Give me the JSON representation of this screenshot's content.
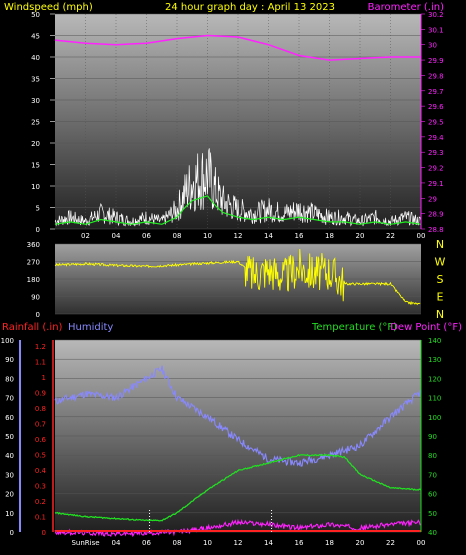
{
  "header": {
    "left_label": "Windspeed (mph)",
    "title": "24 hour graph day : April 13 2023",
    "right_label": "Barometer (.in)"
  },
  "bottom_header": {
    "rainfall_label": "Rainfall (.in)",
    "humidity_label": "Humidity",
    "temperature_label": "Temperature (°F)",
    "dewpoint_label": "Dew Point (°F)"
  },
  "colors": {
    "windspeed": "#ffffff",
    "wind_avg": "#22ee22",
    "barometer": "#ff22ff",
    "direction": "#ffff00",
    "rain": "#ff2222",
    "humidity": "#8888ff",
    "temperature": "#22dd22",
    "dewpoint": "#ff22ff",
    "header_text": "#ffff00"
  },
  "markers": {
    "sunrise": "SunRise",
    "sunset": ""
  },
  "chart_data": [
    {
      "type": "line",
      "name": "wind-barometer",
      "x_ticks": [
        "02",
        "04",
        "06",
        "08",
        "10",
        "12",
        "14",
        "16",
        "18",
        "20",
        "22",
        "00"
      ],
      "y_left_ticks": [
        "0",
        "5",
        "10",
        "15",
        "20",
        "25",
        "30",
        "35",
        "40",
        "45",
        "50"
      ],
      "y_right_ticks": [
        "28.8",
        "28.9",
        "29",
        "29.1",
        "29.2",
        "29.3",
        "29.4",
        "29.5",
        "29.6",
        "29.7",
        "29.8",
        "29.9",
        "30",
        "30.1",
        "30.2"
      ],
      "ylim_left": [
        0,
        50
      ],
      "ylim_right": [
        28.8,
        30.2
      ],
      "series": [
        {
          "name": "Windspeed (mph)",
          "axis": "left",
          "points": [
            [
              0,
              2
            ],
            [
              1,
              3
            ],
            [
              2,
              2
            ],
            [
              3,
              4
            ],
            [
              4,
              3
            ],
            [
              5,
              2
            ],
            [
              6,
              3
            ],
            [
              7,
              2
            ],
            [
              8,
              5
            ],
            [
              8.5,
              9
            ],
            [
              9,
              12
            ],
            [
              9.5,
              13
            ],
            [
              10,
              14
            ],
            [
              10.5,
              10
            ],
            [
              11,
              7
            ],
            [
              12,
              5
            ],
            [
              13,
              4
            ],
            [
              14,
              5
            ],
            [
              15,
              4
            ],
            [
              16,
              5
            ],
            [
              17,
              4
            ],
            [
              18,
              3
            ],
            [
              19,
              3
            ],
            [
              20,
              2
            ],
            [
              21,
              3
            ],
            [
              22,
              2
            ],
            [
              23,
              3
            ],
            [
              24,
              2
            ]
          ]
        },
        {
          "name": "Barometer (.in)",
          "axis": "right",
          "points": [
            [
              0,
              30.03
            ],
            [
              2,
              30.01
            ],
            [
              4,
              30.0
            ],
            [
              6,
              30.01
            ],
            [
              8,
              30.04
            ],
            [
              10,
              30.06
            ],
            [
              12,
              30.05
            ],
            [
              14,
              30.0
            ],
            [
              16,
              29.93
            ],
            [
              18,
              29.9
            ],
            [
              20,
              29.91
            ],
            [
              22,
              29.92
            ],
            [
              24,
              29.92
            ]
          ]
        }
      ]
    },
    {
      "type": "line",
      "name": "wind-direction",
      "y_ticks": [
        "0",
        "90",
        "180",
        "270",
        "360"
      ],
      "direction_labels": [
        "N",
        "W",
        "S",
        "E",
        "N"
      ],
      "ylim": [
        0,
        360
      ],
      "series": [
        {
          "name": "Direction",
          "points": [
            [
              0,
              252
            ],
            [
              2,
              258
            ],
            [
              4,
              250
            ],
            [
              6,
              245
            ],
            [
              8,
              252
            ],
            [
              10,
              262
            ],
            [
              12,
              270
            ],
            [
              13,
              200
            ],
            [
              14,
              230
            ],
            [
              15,
              190
            ],
            [
              16,
              240
            ],
            [
              17,
              210
            ],
            [
              18,
              220
            ],
            [
              19,
              155
            ],
            [
              20,
              155
            ],
            [
              22,
              155
            ],
            [
              23,
              60
            ],
            [
              24,
              50
            ]
          ]
        }
      ]
    },
    {
      "type": "line",
      "name": "temp-humidity",
      "x_ticks": [
        "SunRise",
        "04",
        "06",
        "08",
        "10",
        "12",
        "14",
        "16",
        "18",
        "20",
        "22",
        "00"
      ],
      "y_left_ticks": [
        "0",
        "10",
        "20",
        "30",
        "40",
        "50",
        "60",
        "70",
        "80",
        "90",
        "100"
      ],
      "y_rain_ticks": [
        "0",
        "0.1",
        "0.2",
        "0.3",
        "0.4",
        "0.5",
        "0.6",
        "0.7",
        "0.8",
        "0.9",
        "1",
        "1.1",
        "1.2"
      ],
      "y_right_ticks": [
        "40",
        "50",
        "60",
        "70",
        "80",
        "90",
        "100",
        "110",
        "120",
        "130",
        "140"
      ],
      "ylim_left": [
        0,
        100
      ],
      "ylim_right": [
        40,
        140
      ],
      "series": [
        {
          "name": "Humidity",
          "axis": "left",
          "points": [
            [
              0,
              68
            ],
            [
              2,
              72
            ],
            [
              4,
              70
            ],
            [
              6,
              80
            ],
            [
              7,
              85
            ],
            [
              8,
              70
            ],
            [
              10,
              60
            ],
            [
              12,
              48
            ],
            [
              14,
              38
            ],
            [
              16,
              36
            ],
            [
              18,
              40
            ],
            [
              20,
              45
            ],
            [
              22,
              60
            ],
            [
              24,
              73
            ]
          ]
        },
        {
          "name": "Temperature (°F)",
          "axis": "right",
          "points": [
            [
              0,
              50
            ],
            [
              2,
              48
            ],
            [
              4,
              47
            ],
            [
              6,
              46
            ],
            [
              7,
              46
            ],
            [
              8,
              50
            ],
            [
              10,
              62
            ],
            [
              12,
              72
            ],
            [
              14,
              76
            ],
            [
              16,
              80
            ],
            [
              18,
              80
            ],
            [
              19,
              79
            ],
            [
              20,
              70
            ],
            [
              22,
              63
            ],
            [
              24,
              62
            ]
          ]
        },
        {
          "name": "Dew Point (°F)",
          "axis": "right",
          "points": [
            [
              0,
              40
            ],
            [
              4,
              39
            ],
            [
              8,
              40
            ],
            [
              10,
              42
            ],
            [
              12,
              45
            ],
            [
              14,
              44
            ],
            [
              16,
              42
            ],
            [
              18,
              44
            ],
            [
              20,
              42
            ],
            [
              22,
              44
            ],
            [
              24,
              45
            ]
          ]
        },
        {
          "name": "Rainfall (.in)",
          "axis": "left",
          "points": [
            [
              0,
              0
            ],
            [
              24,
              0
            ]
          ]
        }
      ]
    }
  ]
}
